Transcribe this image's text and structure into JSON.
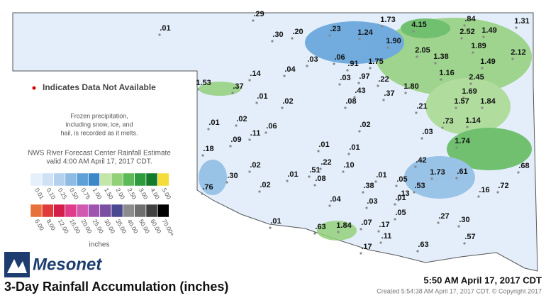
{
  "map": {
    "title": "3-Day Rainfall Accumulation (inches)",
    "brand": "Mesonet",
    "timestamp": "5:50 AM April 17, 2017 CDT",
    "created": "Created 5:54:38 AM April 17, 2017 CDT. © Copyright 2017",
    "missing_note": "Indicates Data Not Available",
    "frozen_note": [
      "Frozen precipitation,",
      "including snow, ice, and",
      "hail, is recorded as it melts."
    ],
    "source": [
      "NWS River Forecast Center Rainfall Estimate",
      "valid 4:00 AM April 17, 2017 CDT."
    ],
    "legend_unit": "inches",
    "legend_row1": [
      {
        "label": "0.01",
        "color": "#e6f0fa"
      },
      {
        "label": "0.10",
        "color": "#cfe2f5"
      },
      {
        "label": "0.25",
        "color": "#b3d1ee"
      },
      {
        "label": "0.50",
        "color": "#8dbbe4"
      },
      {
        "label": "0.75",
        "color": "#5ea0d8"
      },
      {
        "label": "1.00",
        "color": "#3b87c8"
      },
      {
        "label": "1.50",
        "color": "#c4e6a8"
      },
      {
        "label": "2.00",
        "color": "#93d07a"
      },
      {
        "label": "2.50",
        "color": "#5db858"
      },
      {
        "label": "3.00",
        "color": "#2d9b3c"
      },
      {
        "label": "4.00",
        "color": "#137a2c"
      },
      {
        "label": "5.00",
        "color": "#f4dd3a"
      }
    ],
    "legend_row2": [
      {
        "label": "6.00",
        "color": "#e8703a"
      },
      {
        "label": "8.00",
        "color": "#e03a3a"
      },
      {
        "label": "12.00",
        "color": "#d41e4a"
      },
      {
        "label": "16.00",
        "color": "#e03c8c"
      },
      {
        "label": "20.00",
        "color": "#d05ab0"
      },
      {
        "label": "25.00",
        "color": "#a054b0"
      },
      {
        "label": "30.00",
        "color": "#7a4ea0"
      },
      {
        "label": "35.00",
        "color": "#4a4890"
      },
      {
        "label": "40.00",
        "color": "#8c8c8c"
      },
      {
        "label": "50.00",
        "color": "#6e6e6e"
      },
      {
        "label": "60.00",
        "color": "#404040"
      },
      {
        "label": "70.00+",
        "color": "#000000"
      }
    ],
    "stations": [
      ".29",
      ".01",
      ".30",
      ".20",
      ".23",
      "1.24",
      "1.73",
      "4.15",
      ".84",
      "1.31",
      "2.52",
      "1.49",
      "1.90",
      ".03",
      ".06",
      "2.05",
      "1.38",
      "1.89",
      "1.49",
      "2.12",
      ".04",
      ".91",
      "1.75",
      ".14",
      ".03",
      ".97",
      ".22",
      "1.16",
      "2.45",
      "1.53",
      ".37",
      ".01",
      ".43",
      ".37",
      "1.80",
      "1.69",
      ".02",
      ".08",
      "1.57",
      "1.84",
      ".21",
      ".02",
      ".73",
      "1.14",
      ".02",
      ".01",
      ".06",
      ".11",
      ".03",
      ".09",
      ".01",
      ".01",
      "1.74",
      ".18",
      ".22",
      ".42",
      ".02",
      ".10",
      ".51",
      ".01",
      ".08",
      ".30",
      ".01",
      ".05",
      "1.73",
      ".61",
      ".68",
      ".76",
      ".02",
      ".38",
      ".53",
      ".72",
      ".16",
      ".13",
      ".04",
      ".03",
      ".01",
      ".05",
      ".27",
      ".30",
      ".01",
      ".63",
      "1.84",
      ".07",
      ".17",
      ".11",
      ".57",
      ".17",
      ".63"
    ]
  }
}
